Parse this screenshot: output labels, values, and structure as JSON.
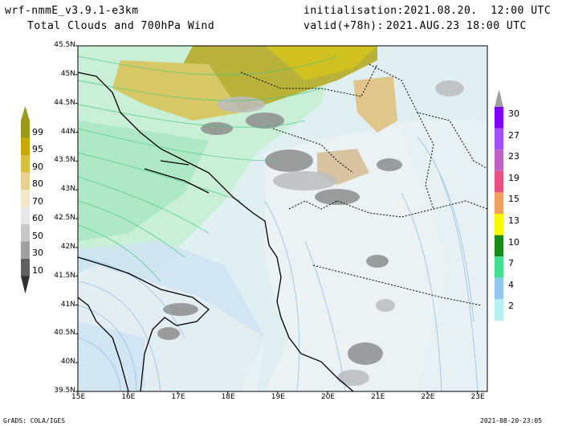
{
  "header": {
    "model": "wrf-nmmE_v3.9.1-e3km",
    "product": "Total Clouds and 700hPa Wind",
    "init_label": "initialisation:",
    "init_value": "2021.08.20.  12:00 UTC",
    "valid_label": "valid(+78h):",
    "valid_value": "2021.AUG.23 18:00 UTC"
  },
  "footer": {
    "credit": "GrADS: COLA/IGES",
    "timestamp": "2021-08-20-23:05"
  },
  "map": {
    "lat_ticks": [
      "45.5N",
      "45N",
      "44.5N",
      "44N",
      "43.5N",
      "43N",
      "42.5N",
      "42N",
      "41.5N",
      "41N",
      "40.5N",
      "40N",
      "39.5N"
    ],
    "lon_ticks": [
      "15E",
      "16E",
      "17E",
      "18E",
      "19E",
      "20E",
      "21E",
      "22E",
      "23E"
    ],
    "lat_range": [
      39.5,
      45.5
    ],
    "lon_range": [
      15,
      23.2
    ]
  },
  "cloud_colorbar": {
    "labels": [
      "99",
      "95",
      "90",
      "80",
      "70",
      "60",
      "50",
      "30",
      "10"
    ],
    "colors": [
      "#9a9a1a",
      "#c8a800",
      "#d8c040",
      "#e8d090",
      "#f0e8c8",
      "#e8e8e8",
      "#c8c8c8",
      "#a0a0a0",
      "#606060",
      "#303030"
    ]
  },
  "wind_colorbar": {
    "labels": [
      "30",
      "27",
      "23",
      "19",
      "15",
      "13",
      "10",
      "7",
      "4",
      "2"
    ],
    "colors": [
      "#8000ff",
      "#a050ff",
      "#c060c0",
      "#e85080",
      "#f0a060",
      "#f8f800",
      "#1a8a1a",
      "#40e090",
      "#90c8f0",
      "#b8f0f0"
    ]
  }
}
